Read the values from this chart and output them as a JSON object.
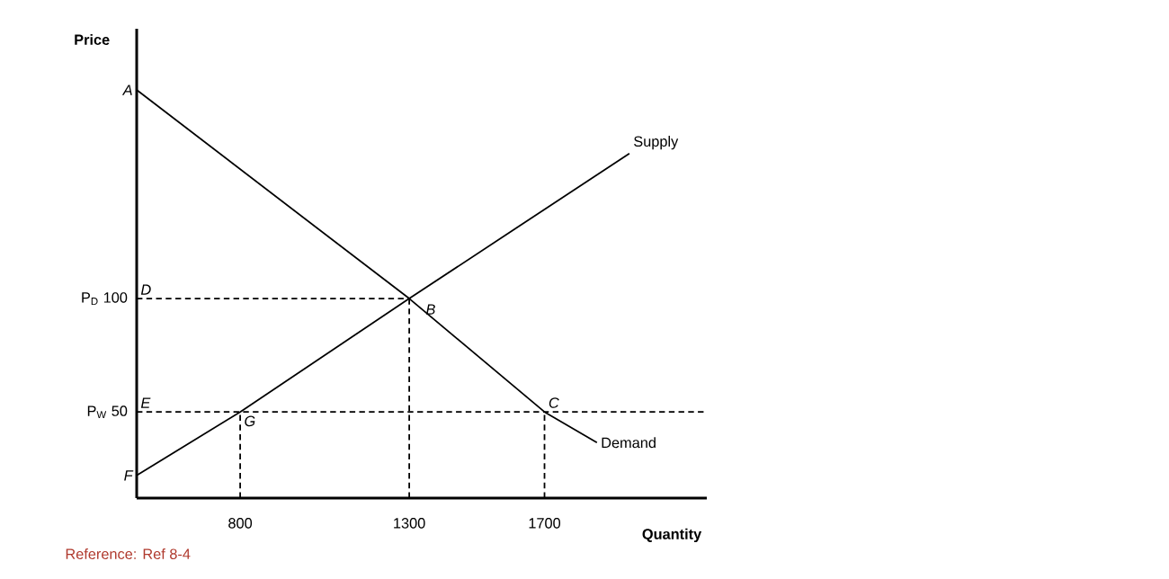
{
  "chart_data": {
    "type": "line",
    "xlabel": "Quantity",
    "ylabel": "Price",
    "xlim": [
      494,
      2180
    ],
    "ylim": [
      12,
      219
    ],
    "xticks": [
      800,
      1300,
      1700
    ],
    "yticks": [
      {
        "value": 50,
        "label": "P$_{W}$ 50"
      },
      {
        "value": 100,
        "label": "P$_{D}$ 100"
      }
    ],
    "series": [
      {
        "name": "Supply",
        "color": "#000000",
        "line_style": "solid",
        "x": [
          494,
          800,
          1300,
          1951
        ],
        "values": [
          22,
          50,
          100,
          164
        ]
      },
      {
        "name": "Demand",
        "color": "#000000",
        "line_style": "solid",
        "x": [
          494,
          1300,
          1700,
          1855
        ],
        "values": [
          192,
          100,
          50,
          36.5
        ]
      },
      {
        "color": "#000000",
        "line_style": "dashed",
        "x": [
          494,
          1300
        ],
        "values": [
          100,
          100
        ]
      },
      {
        "color": "#000000",
        "line_style": "dashed",
        "x": [
          494,
          2180
        ],
        "values": [
          50,
          50
        ]
      },
      {
        "color": "#000000",
        "line_style": "dashed",
        "x": [
          800,
          800
        ],
        "values": [
          12,
          50
        ]
      },
      {
        "color": "#000000",
        "line_style": "dashed",
        "x": [
          1300,
          1300
        ],
        "values": [
          12,
          100
        ]
      },
      {
        "color": "#000000",
        "line_style": "dashed",
        "x": [
          1700,
          1700
        ],
        "values": [
          12,
          50
        ]
      }
    ],
    "annotations": [
      {
        "text": "A",
        "x": 494,
        "y": 192
      },
      {
        "text": "B",
        "x": 1300,
        "y": 100
      },
      {
        "text": "C",
        "x": 1700,
        "y": 50
      },
      {
        "text": "D",
        "x": 494,
        "y": 100
      },
      {
        "text": "E",
        "x": 494,
        "y": 50
      },
      {
        "text": "F",
        "x": 494,
        "y": 22
      },
      {
        "text": "G",
        "x": 800,
        "y": 50
      },
      "Reference: Ref 8-4"
    ]
  }
}
